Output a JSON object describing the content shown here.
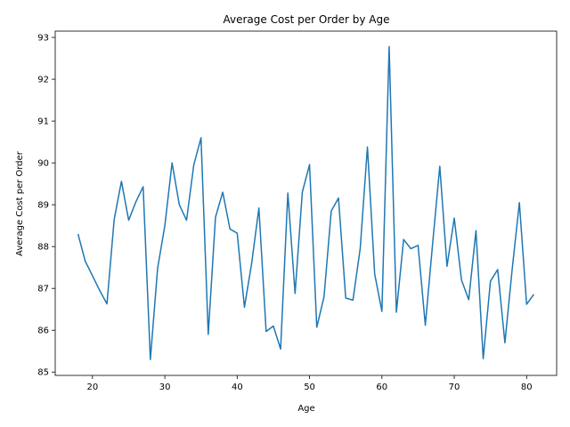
{
  "chart_data": {
    "type": "line",
    "title": "Average Cost per Order by Age",
    "xlabel": "Age",
    "ylabel": "Average Cost per Order",
    "xlim": [
      14.85,
      84.15
    ],
    "ylim": [
      84.92,
      93.15
    ],
    "xticks": [
      20,
      30,
      40,
      50,
      60,
      70,
      80
    ],
    "yticks": [
      85,
      86,
      87,
      88,
      89,
      90,
      91,
      92,
      93
    ],
    "grid": false,
    "legend": "none",
    "color": "#1f77b4",
    "series": [
      {
        "x": [
          18,
          19,
          20,
          21,
          22,
          23,
          24,
          25,
          26,
          27,
          28,
          29,
          30,
          31,
          32,
          33,
          34,
          35,
          36,
          37,
          38,
          39,
          40,
          41,
          42,
          43,
          44,
          45,
          46,
          47,
          48,
          49,
          50,
          51,
          52,
          53,
          54,
          55,
          56,
          57,
          58,
          59,
          60,
          61,
          62,
          63,
          64,
          65,
          66,
          67,
          68,
          69,
          70,
          71,
          72,
          73,
          74,
          75,
          76,
          77,
          78,
          79,
          80,
          81
        ],
        "values": [
          88.3,
          87.65,
          87.3,
          86.95,
          86.63,
          88.65,
          89.56,
          88.63,
          89.07,
          89.43,
          85.3,
          87.48,
          88.5,
          90.0,
          89.0,
          88.63,
          89.95,
          90.6,
          85.9,
          88.7,
          89.3,
          88.42,
          88.32,
          86.55,
          87.6,
          88.92,
          85.97,
          86.1,
          85.55,
          89.28,
          86.88,
          89.3,
          89.96,
          86.07,
          86.8,
          88.85,
          89.16,
          86.77,
          86.72,
          87.95,
          90.38,
          87.35,
          86.45,
          92.78,
          86.43,
          88.17,
          87.95,
          88.03,
          86.12,
          88.05,
          89.92,
          87.53,
          88.68,
          87.2,
          86.73,
          88.38,
          85.32,
          87.17,
          87.45,
          85.7,
          87.45,
          89.05,
          86.62,
          86.86
        ]
      }
    ]
  }
}
